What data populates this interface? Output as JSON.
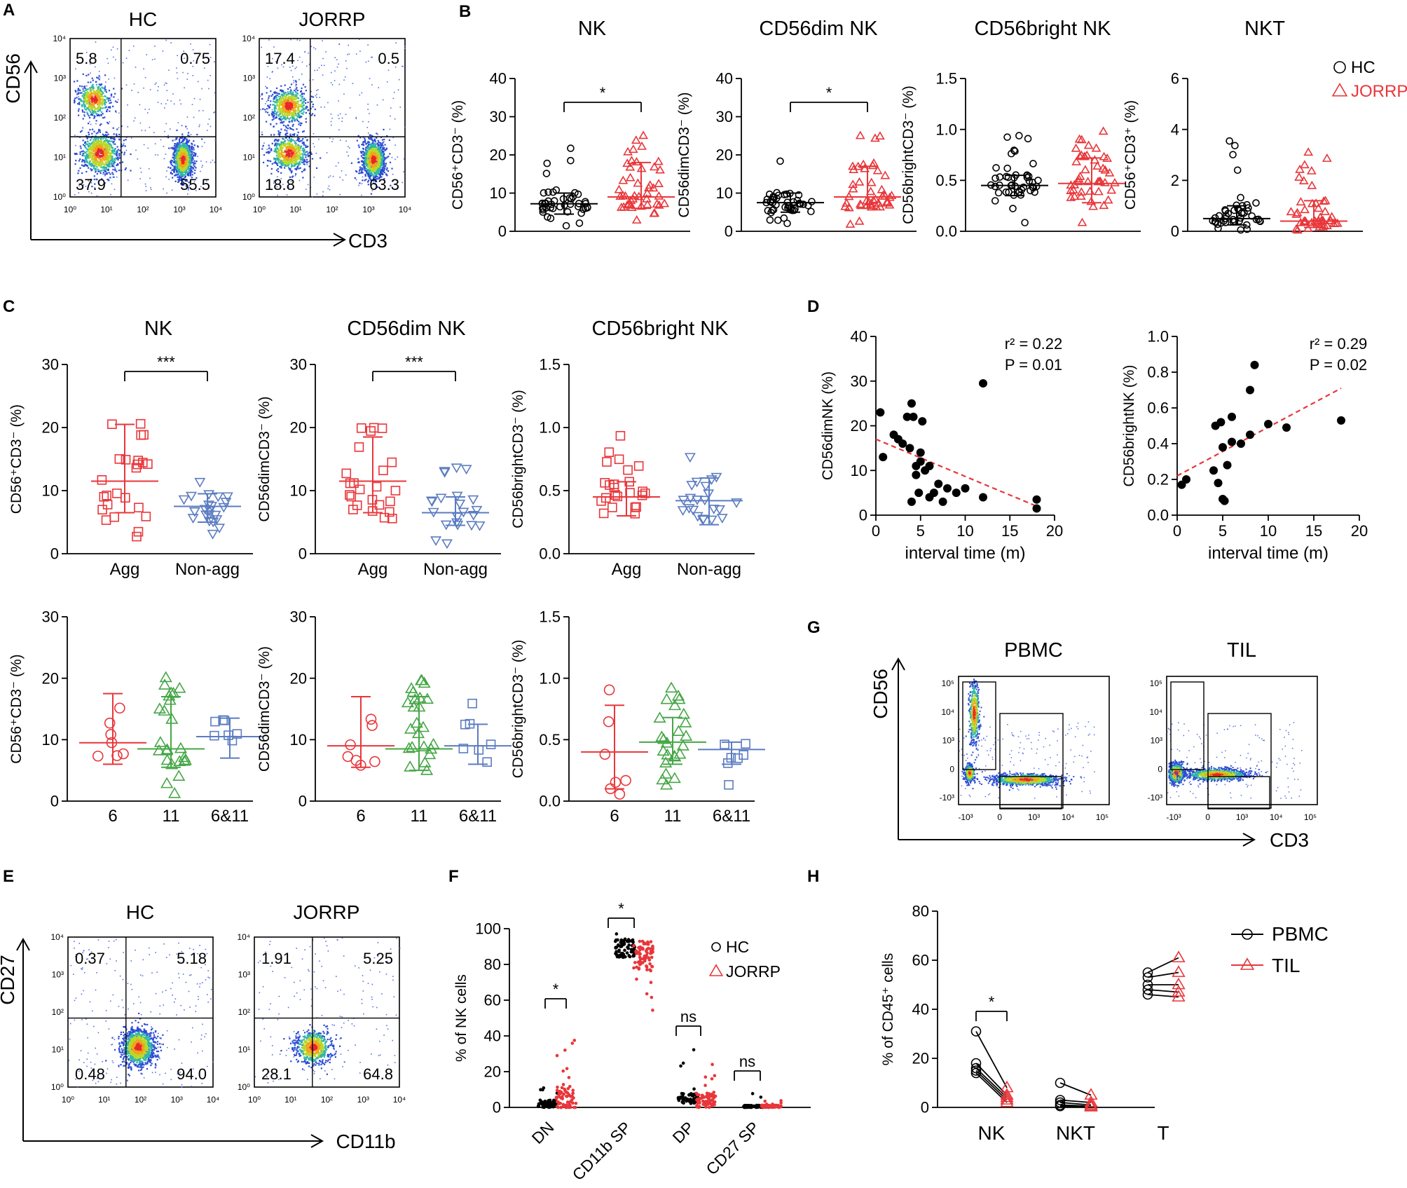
{
  "panel_letters": [
    "A",
    "B",
    "C",
    "D",
    "E",
    "F",
    "G",
    "H"
  ],
  "colors": {
    "hc": "#000000",
    "jorrp": "#e8363a",
    "agg": "#e8363a",
    "nonagg": "#5b7cc0",
    "green": "#45a646",
    "dashed": "#e8363a"
  },
  "chart_data": [
    {
      "id": "A",
      "type": "flow-cytometry",
      "plots": [
        {
          "title": "HC",
          "quadrants": {
            "ul": "5.8",
            "ur": "0.75",
            "ll": "37.9",
            "lr": "55.5"
          }
        },
        {
          "title": "JORRP",
          "quadrants": {
            "ul": "17.4",
            "ur": "0.5",
            "ll": "18.8",
            "lr": "63.3"
          }
        }
      ],
      "xlabel": "CD3",
      "ylabel": "CD56",
      "xticks": [
        "10⁰",
        "10¹",
        "10²",
        "10³",
        "10⁴"
      ],
      "yticks": [
        "10⁰",
        "10¹",
        "10²",
        "10³",
        "10⁴"
      ]
    },
    {
      "id": "B",
      "type": "scatter-dot",
      "legend": [
        "HC",
        "JORRP"
      ],
      "legend_position": "top-right",
      "plots": [
        {
          "title": "NK",
          "ylabel": "CD56⁺CD3⁻ (%)",
          "ylim": [
            0,
            40
          ],
          "yticks": [
            "0",
            "10",
            "20",
            "30",
            "40"
          ],
          "groups": [
            {
              "name": "HC",
              "median": 7.2,
              "q1": 4.5,
              "q3": 10
            },
            {
              "name": "JORRP",
              "median": 9,
              "q1": 6,
              "q3": 18
            }
          ],
          "significance": "*"
        },
        {
          "title": "CD56dim NK",
          "ylabel": "CD56dimCD3⁻ (%)",
          "ylim": [
            0,
            40
          ],
          "yticks": [
            "0",
            "10",
            "20",
            "30",
            "40"
          ],
          "groups": [
            {
              "name": "HC",
              "median": 7.5,
              "q1": 5,
              "q3": 10
            },
            {
              "name": "JORRP",
              "median": 9,
              "q1": 6,
              "q3": 17
            }
          ],
          "significance": "*"
        },
        {
          "title": "CD56bright NK",
          "ylabel": "CD56brightCD3⁻ (%)",
          "ylim": [
            0,
            1.5
          ],
          "yticks": [
            "0.0",
            "0.5",
            "1.0",
            "1.5"
          ],
          "groups": [
            {
              "name": "HC",
              "median": 0.45,
              "q1": 0.35,
              "q3": 0.55
            },
            {
              "name": "JORRP",
              "median": 0.47,
              "q1": 0.28,
              "q3": 0.72
            }
          ],
          "significance": ""
        },
        {
          "title": "NKT",
          "ylabel": "CD56⁺CD3⁺ (%)",
          "ylim": [
            0,
            6
          ],
          "yticks": [
            "0",
            "2",
            "4",
            "6"
          ],
          "groups": [
            {
              "name": "HC",
              "median": 0.5,
              "q1": 0.25,
              "q3": 1.0
            },
            {
              "name": "JORRP",
              "median": 0.4,
              "q1": 0.15,
              "q3": 1.2
            }
          ],
          "significance": ""
        }
      ]
    },
    {
      "id": "C",
      "type": "scatter-dot",
      "plots": [
        {
          "title": "NK",
          "ylabel": "CD56⁺CD3⁻ (%)",
          "ylim": [
            0,
            30
          ],
          "yticks": [
            "0",
            "10",
            "20",
            "30"
          ],
          "categories": [
            "Agg",
            "Non-agg"
          ],
          "groups": [
            {
              "name": "Agg",
              "median": 11.5,
              "q1": 6.5,
              "q3": 20.5
            },
            {
              "name": "Non-agg",
              "median": 7.5,
              "q1": 5,
              "q3": 9.5
            }
          ],
          "significance": "***"
        },
        {
          "title": "CD56dim NK",
          "ylabel": "CD56dimCD3⁻ (%)",
          "ylim": [
            0,
            30
          ],
          "yticks": [
            "0",
            "10",
            "20",
            "30"
          ],
          "categories": [
            "Agg",
            "Non-agg"
          ],
          "groups": [
            {
              "name": "Agg",
              "median": 11.5,
              "q1": 6.5,
              "q3": 18.5
            },
            {
              "name": "Non-agg",
              "median": 6.5,
              "q1": 4.5,
              "q3": 9
            }
          ],
          "significance": "***"
        },
        {
          "title": "CD56bright NK",
          "ylabel": "CD56brightCD3⁻ (%)",
          "ylim": [
            0,
            1.5
          ],
          "yticks": [
            "0.0",
            "0.5",
            "1.0",
            "1.5"
          ],
          "categories": [
            "Agg",
            "Non-agg"
          ],
          "groups": [
            {
              "name": "Agg",
              "median": 0.45,
              "q1": 0.3,
              "q3": 0.57
            },
            {
              "name": "Non-agg",
              "median": 0.42,
              "q1": 0.23,
              "q3": 0.6
            }
          ],
          "significance": ""
        },
        {
          "title": "",
          "ylabel": "CD56⁺CD3⁻ (%)",
          "ylim": [
            0,
            30
          ],
          "yticks": [
            "0",
            "10",
            "20",
            "30"
          ],
          "categories": [
            "6",
            "11",
            "6&11"
          ],
          "groups": [
            {
              "name": "6",
              "median": 9.5,
              "q1": 6,
              "q3": 17.5
            },
            {
              "name": "11",
              "median": 8.5,
              "q1": 5.5,
              "q3": 17
            },
            {
              "name": "6&11",
              "median": 10.5,
              "q1": 7,
              "q3": 13.5
            }
          ],
          "significance": ""
        },
        {
          "title": "",
          "ylabel": "CD56dimCD3⁻ (%)",
          "ylim": [
            0,
            30
          ],
          "yticks": [
            "0",
            "10",
            "20",
            "30"
          ],
          "categories": [
            "6",
            "11",
            "6&11"
          ],
          "groups": [
            {
              "name": "6",
              "median": 9,
              "q1": 5.5,
              "q3": 17
            },
            {
              "name": "11",
              "median": 8.5,
              "q1": 5,
              "q3": 17
            },
            {
              "name": "6&11",
              "median": 9,
              "q1": 6,
              "q3": 12.5
            }
          ],
          "significance": ""
        },
        {
          "title": "",
          "ylabel": "CD56brightCD3⁻ (%)",
          "ylim": [
            0,
            1.5
          ],
          "yticks": [
            "0.0",
            "0.5",
            "1.0",
            "1.5"
          ],
          "categories": [
            "6",
            "11",
            "6&11"
          ],
          "groups": [
            {
              "name": "6",
              "median": 0.4,
              "q1": 0.1,
              "q3": 0.78
            },
            {
              "name": "11",
              "median": 0.48,
              "q1": 0.3,
              "q3": 0.68
            },
            {
              "name": "6&11",
              "median": 0.42,
              "q1": 0.3,
              "q3": 0.48
            }
          ],
          "significance": ""
        }
      ]
    },
    {
      "id": "D",
      "type": "scatter",
      "plots": [
        {
          "ylabel": "CD56dimNK (%)",
          "xlabel": "interval time (m)",
          "xlim": [
            0,
            20
          ],
          "ylim": [
            0,
            40
          ],
          "xticks": [
            "0",
            "5",
            "10",
            "15",
            "20"
          ],
          "yticks": [
            "0",
            "10",
            "20",
            "30",
            "40"
          ],
          "r2": "r² = 0.22",
          "p": "P = 0.01",
          "fit": [
            [
              0,
              17
            ],
            [
              18,
              2
            ]
          ],
          "x": [
            0.5,
            0.8,
            2,
            2.5,
            3,
            3.5,
            3.8,
            4,
            4,
            4.2,
            4.5,
            4.5,
            4.8,
            5,
            5,
            5.2,
            5.5,
            6,
            6,
            6.5,
            7,
            7.5,
            8,
            9,
            10,
            12,
            12,
            18,
            18
          ],
          "y": [
            23,
            13,
            18,
            17,
            16,
            22,
            15,
            3,
            25,
            22,
            11,
            9,
            5,
            12,
            14,
            21,
            10,
            11,
            4,
            5,
            7,
            3,
            6,
            5,
            6,
            29.5,
            4,
            3.5,
            1.5
          ]
        },
        {
          "ylabel": "CD56brightNK (%)",
          "xlabel": "interval time (m)",
          "xlim": [
            0,
            20
          ],
          "ylim": [
            0,
            1.0
          ],
          "xticks": [
            "0",
            "5",
            "10",
            "15",
            "20"
          ],
          "yticks": [
            "0.0",
            "0.2",
            "0.4",
            "0.6",
            "0.8",
            "1.0"
          ],
          "r2": "r² = 0.29",
          "p": "P = 0.02",
          "fit": [
            [
              0,
              0.22
            ],
            [
              18,
              0.71
            ]
          ],
          "x": [
            0.5,
            1,
            4,
            4.2,
            4.5,
            4.8,
            5,
            5,
            5.2,
            5.5,
            6,
            6,
            7,
            8,
            8,
            8.5,
            10,
            12,
            18
          ],
          "y": [
            0.17,
            0.2,
            0.25,
            0.5,
            0.18,
            0.52,
            0.09,
            0.38,
            0.08,
            0.28,
            0.41,
            0.55,
            0.4,
            0.45,
            0.7,
            0.84,
            0.51,
            0.49,
            0.53
          ]
        }
      ]
    },
    {
      "id": "E",
      "type": "flow-cytometry",
      "plots": [
        {
          "title": "HC",
          "quadrants": {
            "ul": "0.37",
            "ur": "5.18",
            "ll": "0.48",
            "lr": "94.0"
          }
        },
        {
          "title": "JORRP",
          "quadrants": {
            "ul": "1.91",
            "ur": "5.25",
            "ll": "28.1",
            "lr": "64.8"
          }
        }
      ],
      "xlabel": "CD11b",
      "ylabel": "CD27",
      "xticks": [
        "10⁰",
        "10¹",
        "10²",
        "10³",
        "10⁴"
      ],
      "yticks": [
        "10⁰",
        "10¹",
        "10²",
        "10³",
        "10⁴"
      ]
    },
    {
      "id": "F",
      "type": "scatter-dot",
      "legend": [
        "HC",
        "JORRP"
      ],
      "ylabel": "% of NK cells",
      "ylim": [
        0,
        100
      ],
      "yticks": [
        "0",
        "20",
        "40",
        "60",
        "80",
        "100"
      ],
      "categories": [
        "DN",
        "CD11b SP",
        "DP",
        "CD27 SP"
      ],
      "series": [
        {
          "name": "HC",
          "medians": [
            2,
            89,
            5,
            0.5
          ]
        },
        {
          "name": "JORRP",
          "medians": [
            5,
            85,
            4,
            0.5
          ]
        }
      ],
      "significance": [
        "*",
        "*",
        "ns",
        "ns"
      ]
    },
    {
      "id": "G",
      "type": "flow-cytometry-gating",
      "plots": [
        {
          "title": "PBMC"
        },
        {
          "title": "TIL"
        }
      ],
      "xlabel": "CD3",
      "ylabel": "CD56",
      "xticks": [
        "-10³",
        "0",
        "10³",
        "10⁴",
        "10⁵"
      ],
      "yticks": [
        "-10³",
        "0",
        "10³",
        "10⁴",
        "10⁵"
      ]
    },
    {
      "id": "H",
      "type": "paired-line",
      "legend": [
        "PBMC",
        "TIL"
      ],
      "ylabel": "% of CD45⁺ cells",
      "ylim": [
        0,
        80
      ],
      "yticks": [
        "0",
        "20",
        "40",
        "60",
        "80"
      ],
      "categories": [
        "NK",
        "NKT",
        "T"
      ],
      "pairs": [
        {
          "category": "NK",
          "pbmc": [
            31,
            18,
            16,
            15,
            14
          ],
          "til": [
            8,
            5,
            4,
            3,
            2
          ]
        },
        {
          "category": "NKT",
          "pbmc": [
            10,
            3,
            2,
            1,
            0.5
          ],
          "til": [
            5,
            2,
            1,
            0.5,
            0.2
          ]
        },
        {
          "category": "T",
          "pbmc": [
            55,
            53,
            50,
            48,
            46
          ],
          "til": [
            61,
            55,
            50,
            47,
            45
          ]
        }
      ],
      "significance": "*"
    }
  ]
}
